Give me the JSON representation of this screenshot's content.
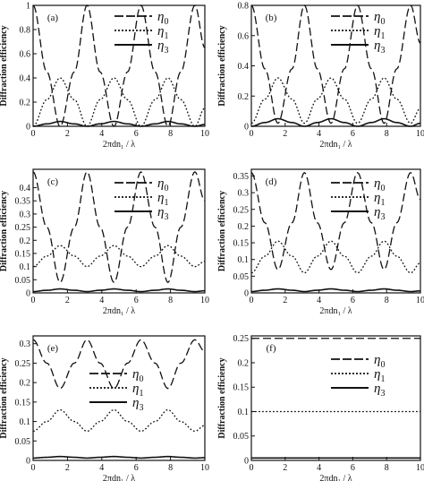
{
  "figure": {
    "ylabel": "Diffraction efficiency",
    "xlabel": "2πdn₁ / λ"
  },
  "legend": [
    {
      "symbol": "η",
      "sub": "0",
      "style": "dashed"
    },
    {
      "symbol": "η",
      "sub": "1",
      "style": "dotted"
    },
    {
      "symbol": "η",
      "sub": "3",
      "style": "solid"
    }
  ],
  "chart_data": [
    {
      "type": "line",
      "panel": "(a)",
      "xlim": [
        0,
        10
      ],
      "ylim": [
        0,
        1
      ],
      "xticks": [
        0,
        2,
        4,
        6,
        8,
        10
      ],
      "yticks": [
        "0",
        "0.2",
        "0.4",
        "0.6",
        "0.8",
        "1"
      ],
      "series": [
        {
          "name": "η₀",
          "style": "dashed",
          "x": [
            0,
            0.8,
            1.57,
            2.4,
            3.14,
            3.9,
            4.71,
            5.5,
            6.28,
            7.1,
            7.85,
            8.6,
            9.42,
            10
          ],
          "y": [
            1,
            0.45,
            0,
            0.45,
            1,
            0.45,
            0,
            0.45,
            1,
            0.45,
            0,
            0.45,
            1,
            0.65
          ]
        },
        {
          "name": "η₁",
          "style": "dotted",
          "x": [
            0,
            0.8,
            1.57,
            2.4,
            3.14,
            3.9,
            4.71,
            5.5,
            6.28,
            7.1,
            7.85,
            8.6,
            9.42,
            10
          ],
          "y": [
            0,
            0.22,
            0.4,
            0.22,
            0,
            0.22,
            0.4,
            0.22,
            0,
            0.22,
            0.4,
            0.22,
            0,
            0.15
          ]
        },
        {
          "name": "η₃",
          "style": "solid",
          "x": [
            0,
            0.8,
            1.57,
            2.4,
            3.14,
            3.9,
            4.71,
            5.5,
            6.28,
            7.1,
            7.85,
            8.6,
            9.42,
            10
          ],
          "y": [
            0,
            0.02,
            0.04,
            0.02,
            0,
            0.02,
            0.04,
            0.02,
            0,
            0.02,
            0.04,
            0.02,
            0,
            0.015
          ]
        }
      ]
    },
    {
      "type": "line",
      "panel": "(b)",
      "xlim": [
        0,
        10
      ],
      "ylim": [
        0,
        0.8
      ],
      "xticks": [
        0,
        2,
        4,
        6,
        8,
        10
      ],
      "yticks": [
        "0",
        "0.2",
        "0.4",
        "0.6",
        "0.8"
      ],
      "series": [
        {
          "name": "η₀",
          "style": "dashed",
          "x": [
            0,
            0.8,
            1.57,
            2.4,
            3.14,
            3.9,
            4.71,
            5.5,
            6.28,
            7.1,
            7.85,
            8.6,
            9.42,
            10
          ],
          "y": [
            0.8,
            0.38,
            0.02,
            0.38,
            0.8,
            0.38,
            0.02,
            0.38,
            0.8,
            0.38,
            0.02,
            0.38,
            0.8,
            0.55
          ]
        },
        {
          "name": "η₁",
          "style": "dotted",
          "x": [
            0,
            0.8,
            1.57,
            2.4,
            3.14,
            3.9,
            4.71,
            5.5,
            6.28,
            7.1,
            7.85,
            8.6,
            9.42,
            10
          ],
          "y": [
            0.02,
            0.18,
            0.32,
            0.18,
            0.02,
            0.18,
            0.32,
            0.18,
            0.02,
            0.18,
            0.32,
            0.18,
            0.02,
            0.12
          ]
        },
        {
          "name": "η₃",
          "style": "solid",
          "x": [
            0,
            0.8,
            1.57,
            2.4,
            3.14,
            3.9,
            4.71,
            5.5,
            6.28,
            7.1,
            7.85,
            8.6,
            9.42,
            10
          ],
          "y": [
            0,
            0.025,
            0.05,
            0.025,
            0,
            0.025,
            0.05,
            0.025,
            0,
            0.025,
            0.05,
            0.025,
            0,
            0.02
          ]
        }
      ]
    },
    {
      "type": "line",
      "panel": "(c)",
      "xlim": [
        0,
        10
      ],
      "ylim": [
        0,
        0.47
      ],
      "xticks": [
        0,
        2,
        4,
        6,
        8,
        10
      ],
      "yticks": [
        "0",
        "0.05",
        "0.1",
        "0.15",
        "0.2",
        "0.25",
        "0.3",
        "0.35",
        "0.4"
      ],
      "series": [
        {
          "name": "η₀",
          "style": "dashed",
          "x": [
            0,
            0.8,
            1.57,
            2.4,
            3.14,
            3.9,
            4.71,
            5.5,
            6.28,
            7.1,
            7.85,
            8.6,
            9.42,
            10
          ],
          "y": [
            0.46,
            0.25,
            0.04,
            0.25,
            0.46,
            0.25,
            0.04,
            0.25,
            0.46,
            0.25,
            0.04,
            0.25,
            0.46,
            0.35
          ]
        },
        {
          "name": "η₁",
          "style": "dotted",
          "x": [
            0,
            0.8,
            1.57,
            2.4,
            3.14,
            3.9,
            4.71,
            5.5,
            6.28,
            7.1,
            7.85,
            8.6,
            9.42,
            10
          ],
          "y": [
            0.1,
            0.14,
            0.18,
            0.14,
            0.1,
            0.14,
            0.18,
            0.14,
            0.1,
            0.14,
            0.18,
            0.14,
            0.1,
            0.12
          ]
        },
        {
          "name": "η₃",
          "style": "solid",
          "x": [
            0,
            0.8,
            1.57,
            2.4,
            3.14,
            3.9,
            4.71,
            5.5,
            6.28,
            7.1,
            7.85,
            8.6,
            9.42,
            10
          ],
          "y": [
            0.005,
            0.01,
            0.015,
            0.01,
            0.005,
            0.01,
            0.015,
            0.01,
            0.005,
            0.01,
            0.015,
            0.01,
            0.005,
            0.008
          ]
        }
      ]
    },
    {
      "type": "line",
      "panel": "(d)",
      "xlim": [
        0,
        10
      ],
      "ylim": [
        0,
        0.37
      ],
      "xticks": [
        0,
        2,
        4,
        6,
        8,
        10
      ],
      "yticks": [
        "0",
        "0.05",
        "0.1",
        "0.15",
        "0.2",
        "0.25",
        "0.3",
        "0.35"
      ],
      "series": [
        {
          "name": "η₀",
          "style": "dashed",
          "x": [
            0,
            0.8,
            1.57,
            2.4,
            3.14,
            3.9,
            4.71,
            5.5,
            6.28,
            7.1,
            7.85,
            8.6,
            9.42,
            10
          ],
          "y": [
            0.36,
            0.21,
            0.07,
            0.21,
            0.36,
            0.21,
            0.07,
            0.21,
            0.36,
            0.21,
            0.07,
            0.21,
            0.36,
            0.28
          ]
        },
        {
          "name": "η₁",
          "style": "dotted",
          "x": [
            0,
            0.8,
            1.57,
            2.4,
            3.14,
            3.9,
            4.71,
            5.5,
            6.28,
            7.1,
            7.85,
            8.6,
            9.42,
            10
          ],
          "y": [
            0.06,
            0.11,
            0.155,
            0.11,
            0.06,
            0.11,
            0.155,
            0.11,
            0.06,
            0.11,
            0.155,
            0.11,
            0.06,
            0.09
          ]
        },
        {
          "name": "η₃",
          "style": "solid",
          "x": [
            0,
            0.8,
            1.57,
            2.4,
            3.14,
            3.9,
            4.71,
            5.5,
            6.28,
            7.1,
            7.85,
            8.6,
            9.42,
            10
          ],
          "y": [
            0.004,
            0.008,
            0.012,
            0.008,
            0.004,
            0.008,
            0.012,
            0.008,
            0.004,
            0.008,
            0.012,
            0.008,
            0.004,
            0.006
          ]
        }
      ]
    },
    {
      "type": "line",
      "panel": "(e)",
      "xlim": [
        0,
        10
      ],
      "ylim": [
        0,
        0.32
      ],
      "xticks": [
        0,
        2,
        4,
        6,
        8,
        10
      ],
      "yticks": [
        "0",
        "0.05",
        "0.1",
        "0.15",
        "0.2",
        "0.25",
        "0.3"
      ],
      "series": [
        {
          "name": "η₀",
          "style": "dashed",
          "x": [
            0,
            0.8,
            1.57,
            2.4,
            3.14,
            3.9,
            4.71,
            5.5,
            6.28,
            7.1,
            7.85,
            8.6,
            9.42,
            10
          ],
          "y": [
            0.31,
            0.25,
            0.185,
            0.25,
            0.31,
            0.25,
            0.185,
            0.25,
            0.31,
            0.25,
            0.185,
            0.25,
            0.31,
            0.28
          ]
        },
        {
          "name": "η₁",
          "style": "dotted",
          "x": [
            0,
            0.8,
            1.57,
            2.4,
            3.14,
            3.9,
            4.71,
            5.5,
            6.28,
            7.1,
            7.85,
            8.6,
            9.42,
            10
          ],
          "y": [
            0.075,
            0.1,
            0.13,
            0.1,
            0.075,
            0.1,
            0.13,
            0.1,
            0.075,
            0.1,
            0.13,
            0.1,
            0.075,
            0.09
          ]
        },
        {
          "name": "η₃",
          "style": "solid",
          "x": [
            0,
            0.8,
            1.57,
            2.4,
            3.14,
            3.9,
            4.71,
            5.5,
            6.28,
            7.1,
            7.85,
            8.6,
            9.42,
            10
          ],
          "y": [
            0.006,
            0.008,
            0.01,
            0.008,
            0.006,
            0.008,
            0.01,
            0.008,
            0.006,
            0.008,
            0.01,
            0.008,
            0.006,
            0.007
          ]
        }
      ]
    },
    {
      "type": "line",
      "panel": "(f)",
      "xlim": [
        0,
        10
      ],
      "ylim": [
        0,
        0.255
      ],
      "xticks": [
        0,
        2,
        4,
        6,
        8,
        10
      ],
      "yticks": [
        "0",
        "0.05",
        "0.1",
        "0.15",
        "0.2",
        "0.25"
      ],
      "series": [
        {
          "name": "η₀",
          "style": "dashed",
          "x": [
            0,
            10
          ],
          "y": [
            0.25,
            0.25
          ]
        },
        {
          "name": "η₁",
          "style": "dotted",
          "x": [
            0,
            10
          ],
          "y": [
            0.1,
            0.1
          ]
        },
        {
          "name": "η₃",
          "style": "solid",
          "x": [
            0,
            10
          ],
          "y": [
            0.005,
            0.005
          ]
        }
      ]
    }
  ]
}
